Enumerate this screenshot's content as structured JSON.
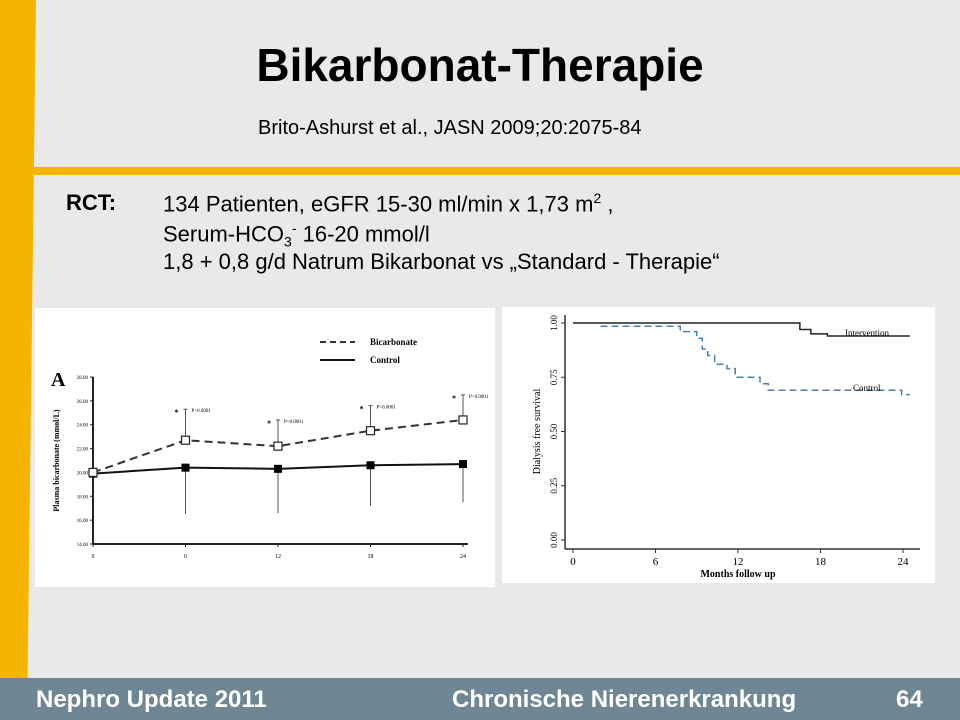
{
  "slide": {
    "title": "Bikarbonat-Therapie",
    "citation": "Brito-Ashurst et al., JASN 2009;20:2075-84",
    "rct_label": "RCT:",
    "rct_line1": "134 Patienten, eGFR 15-30 ml/min x 1,73 m",
    "rct_line1_sup": "2",
    "rct_line1_end": " ,",
    "rct_line2_a": "Serum-HCO",
    "rct_line2_sub": "3",
    "rct_line2_sup": "-",
    "rct_line2_b": " 16-20 mmol/l",
    "rct_line3": "1,8 + 0,8 g/d Natrum Bikarbonat vs „Standard - Therapie“"
  },
  "footer": {
    "brand_a": "Nephro ",
    "brand_up": "Up",
    "brand_b": "date ",
    "brand_year": "2011",
    "topic": "Chronische Nierenerkrankung",
    "page": "64"
  },
  "colors": {
    "accent": "#f5b400",
    "footer": "#6f8795",
    "control_km": "#4a7fb5"
  },
  "chart_data": [
    {
      "type": "line",
      "panel_label": "A",
      "ylabel": "Plasma bicarbonate (mmol/L)",
      "xlabel": "",
      "x": [
        0,
        6,
        12,
        18,
        24
      ],
      "x_tick_labels": [
        "0",
        "6",
        "12",
        "18",
        "24"
      ],
      "ylim": [
        14,
        28
      ],
      "y_ticks": [
        14,
        16,
        18,
        20,
        22,
        24,
        26,
        28
      ],
      "y_tick_labels": [
        "14.00",
        "16.00",
        "18.00",
        "20.00",
        "22.00",
        "24.00",
        "26.00",
        "28.00"
      ],
      "legend": "top-right",
      "series": [
        {
          "name": "Bicarbonate",
          "style": "dashed",
          "marker": "open-square",
          "values": [
            20.0,
            22.7,
            22.2,
            23.5,
            24.4
          ],
          "error_upper": [
            null,
            25.3,
            24.4,
            25.6,
            26.5
          ]
        },
        {
          "name": "Control",
          "style": "solid",
          "marker": "filled-square",
          "values": [
            19.9,
            20.4,
            20.3,
            20.6,
            20.7
          ],
          "error_lower": [
            null,
            16.5,
            16.6,
            17.2,
            17.5
          ]
        }
      ],
      "annotations": [
        {
          "x": 6,
          "text": "P<0.0001"
        },
        {
          "x": 12,
          "text": "P<0.0001"
        },
        {
          "x": 18,
          "text": "P<0.0001"
        },
        {
          "x": 24,
          "text": "P<0.0001"
        }
      ]
    },
    {
      "type": "line",
      "subtype": "kaplan-meier",
      "xlabel": "Months follow up",
      "ylabel": "Dialysis free survival",
      "xlim": [
        0,
        24.5
      ],
      "ylim": [
        0,
        1
      ],
      "x_ticks": [
        0,
        6,
        12,
        18,
        24
      ],
      "x_tick_labels": [
        "0",
        "6",
        "12",
        "18",
        "24"
      ],
      "y_ticks": [
        0,
        0.25,
        0.5,
        0.75,
        1
      ],
      "y_tick_labels": [
        "0.00",
        "0.25",
        "0.50",
        "0.75",
        "1.00"
      ],
      "series": [
        {
          "name": "Intervention",
          "style": "solid",
          "steps": [
            [
              0,
              1.0
            ],
            [
              16.5,
              0.97
            ],
            [
              17.3,
              0.95
            ],
            [
              18.5,
              0.94
            ],
            [
              24.5,
              0.94
            ]
          ]
        },
        {
          "name": "Control",
          "style": "dashed",
          "steps": [
            [
              2,
              0.985
            ],
            [
              7.8,
              0.96
            ],
            [
              9.0,
              0.93
            ],
            [
              9.4,
              0.88
            ],
            [
              9.8,
              0.85
            ],
            [
              10.3,
              0.81
            ],
            [
              11.2,
              0.79
            ],
            [
              11.8,
              0.75
            ],
            [
              13.6,
              0.72
            ],
            [
              14.2,
              0.69
            ],
            [
              23.9,
              0.67
            ],
            [
              24.5,
              0.67
            ]
          ]
        }
      ]
    }
  ]
}
